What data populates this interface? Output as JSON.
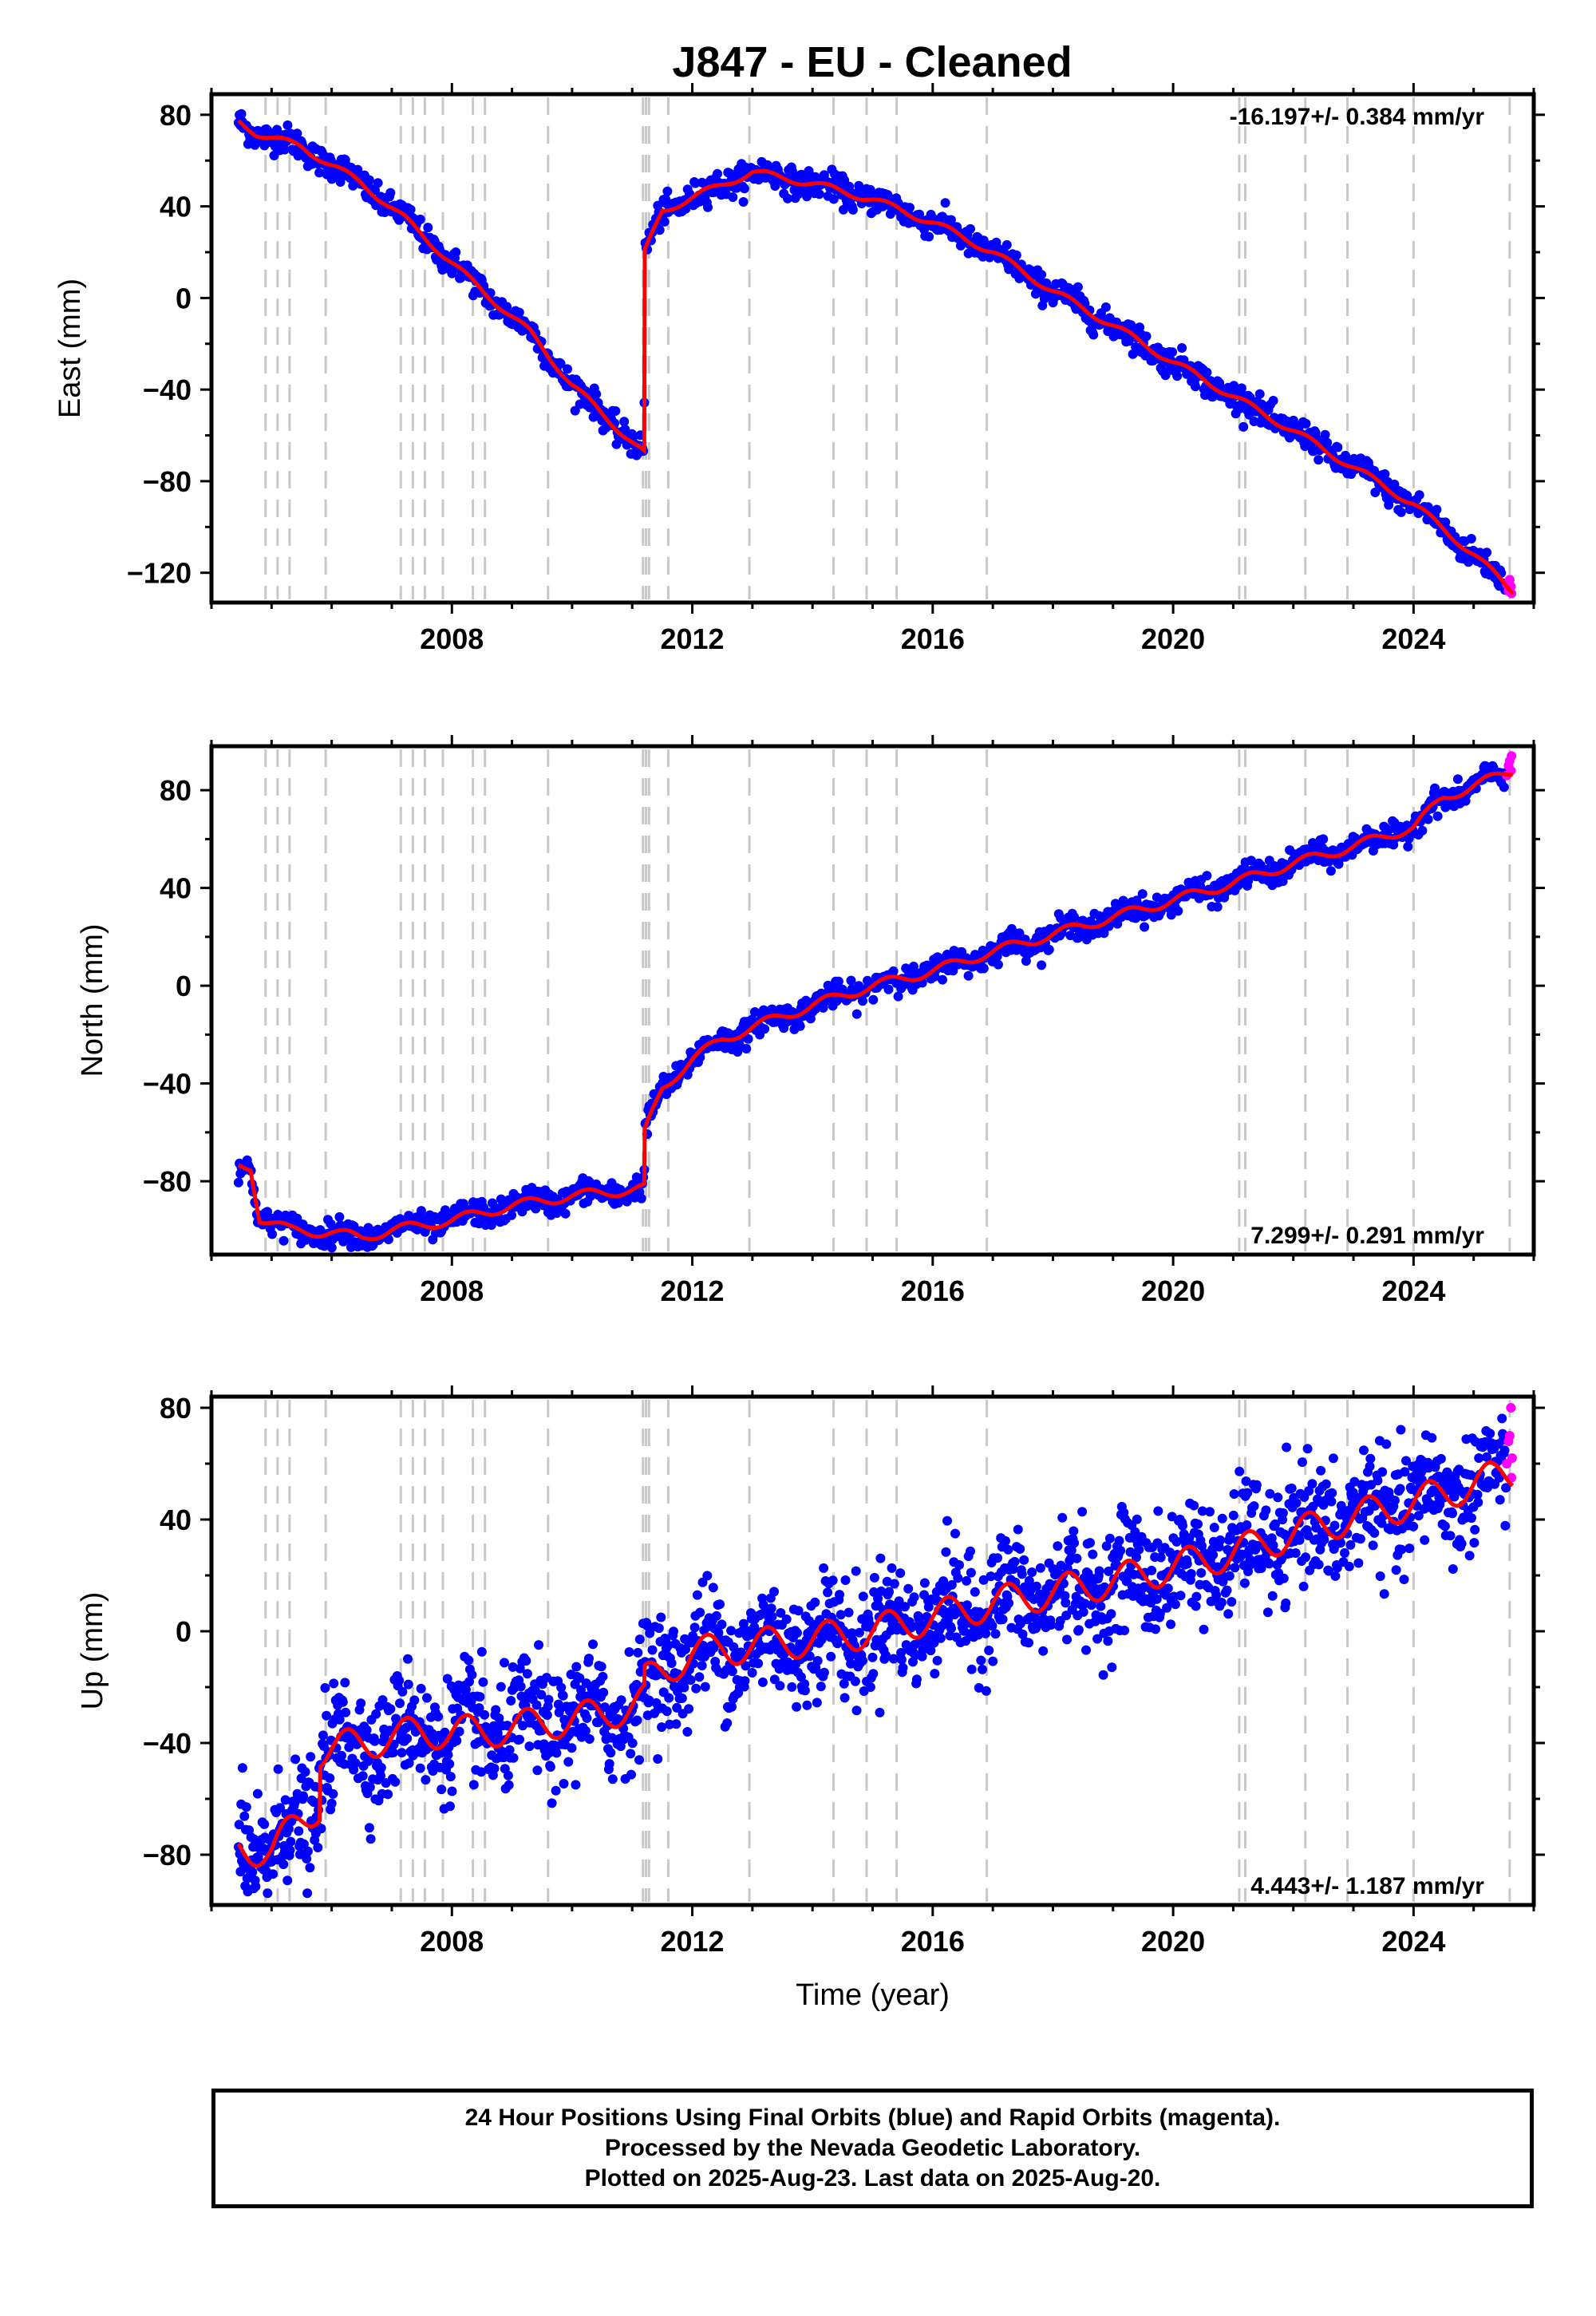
{
  "title": "J847  - EU - Cleaned",
  "colors": {
    "final_orbits": "#0000ff",
    "rapid_orbits": "#ff00ff",
    "model": "#ff0000",
    "event_lines": "#c8c8c8",
    "frame": "#000000"
  },
  "footer": {
    "line1": "24 Hour Positions Using Final Orbits (blue) and Rapid Orbits (magenta).",
    "line2": "Processed by the Nevada Geodetic Laboratory.",
    "line3": "Plotted on 2025-Aug-23. Last data on 2025-Aug-20."
  },
  "chart_data": [
    {
      "type": "scatter",
      "component": "east",
      "ylabel": "East (mm)",
      "rate_text": "-16.197+/- 0.384 mm/yr",
      "rate_position": "top-right",
      "xlim": [
        2004.0,
        2026.0
      ],
      "ylim": [
        -133,
        89
      ],
      "xticks": [
        2008,
        2012,
        2016,
        2020,
        2024
      ],
      "yticks": [
        -120,
        -80,
        -40,
        0,
        40,
        80
      ],
      "equipment_change_lines": [
        2004.9,
        2005.1,
        2005.3,
        2005.9,
        2007.15,
        2007.35,
        2007.55,
        2007.85,
        2008.35,
        2008.55,
        2009.6,
        2011.18,
        2011.23,
        2011.28,
        2011.6,
        2012.95,
        2014.35,
        2014.9,
        2015.4,
        2016.9,
        2021.1,
        2021.2,
        2022.2,
        2022.9,
        2024.0,
        2025.6
      ],
      "model_knots": [
        [
          2004.45,
          77
        ],
        [
          2004.75,
          72
        ],
        [
          2005.5,
          66
        ],
        [
          2006.5,
          50
        ],
        [
          2007.2,
          35
        ],
        [
          2008.3,
          8
        ],
        [
          2009.3,
          -15
        ],
        [
          2010.0,
          -38
        ],
        [
          2011.2,
          -68
        ],
        [
          2011.21,
          20
        ],
        [
          2011.5,
          38
        ],
        [
          2012.1,
          45
        ],
        [
          2013.0,
          55
        ],
        [
          2014.0,
          50
        ],
        [
          2015.0,
          43
        ],
        [
          2016.0,
          33
        ],
        [
          2017.0,
          20
        ],
        [
          2018.0,
          3
        ],
        [
          2019.0,
          -12
        ],
        [
          2020.0,
          -28
        ],
        [
          2021.0,
          -43
        ],
        [
          2022.0,
          -58
        ],
        [
          2023.0,
          -74
        ],
        [
          2024.0,
          -90
        ],
        [
          2025.0,
          -112
        ],
        [
          2025.65,
          -128
        ]
      ],
      "noise_amplitude": 3,
      "seasonal_amplitude": 1.5,
      "rapid_points": [
        [
          2025.55,
          -125
        ],
        [
          2025.58,
          -128
        ],
        [
          2025.6,
          -123
        ],
        [
          2025.62,
          -126
        ],
        [
          2025.63,
          -129
        ]
      ]
    },
    {
      "type": "scatter",
      "component": "north",
      "ylabel": "North (mm)",
      "rate_text": "7.299+/- 0.291 mm/yr",
      "rate_position": "bottom-right",
      "xlim": [
        2004.0,
        2026.0
      ],
      "ylim": [
        -110,
        98
      ],
      "xticks": [
        2008,
        2012,
        2016,
        2020,
        2024
      ],
      "yticks": [
        -80,
        -40,
        0,
        40,
        80
      ],
      "equipment_change_lines": [
        2004.9,
        2005.1,
        2005.3,
        2005.9,
        2007.15,
        2007.35,
        2007.55,
        2007.85,
        2008.35,
        2008.55,
        2009.6,
        2011.18,
        2011.23,
        2011.28,
        2011.6,
        2012.95,
        2014.35,
        2014.9,
        2015.4,
        2016.9,
        2021.1,
        2021.2,
        2022.2,
        2022.9,
        2024.0,
        2025.6
      ],
      "model_knots": [
        [
          2004.45,
          -74
        ],
        [
          2004.65,
          -74
        ],
        [
          2004.8,
          -95
        ],
        [
          2005.3,
          -100
        ],
        [
          2006.0,
          -101
        ],
        [
          2006.5,
          -103
        ],
        [
          2007.0,
          -100
        ],
        [
          2008.0,
          -96
        ],
        [
          2009.0,
          -90
        ],
        [
          2010.0,
          -86
        ],
        [
          2011.2,
          -83
        ],
        [
          2011.21,
          -60
        ],
        [
          2011.5,
          -42
        ],
        [
          2012.0,
          -30
        ],
        [
          2012.5,
          -22
        ],
        [
          2013.0,
          -17
        ],
        [
          2014.0,
          -8
        ],
        [
          2015.0,
          0
        ],
        [
          2016.0,
          6
        ],
        [
          2017.0,
          14
        ],
        [
          2018.0,
          21
        ],
        [
          2019.0,
          28
        ],
        [
          2020.0,
          35
        ],
        [
          2021.0,
          42
        ],
        [
          2022.0,
          50
        ],
        [
          2023.0,
          57
        ],
        [
          2024.0,
          65
        ],
        [
          2024.5,
          77
        ],
        [
          2025.65,
          88
        ]
      ],
      "noise_amplitude": 2.5,
      "seasonal_amplitude": 2,
      "rapid_points": [
        [
          2025.55,
          86
        ],
        [
          2025.58,
          90
        ],
        [
          2025.6,
          92
        ],
        [
          2025.62,
          88
        ],
        [
          2025.63,
          94
        ]
      ]
    },
    {
      "type": "scatter",
      "component": "up",
      "ylabel": "Up (mm)",
      "xlabel": "Time (year)",
      "rate_text": "4.443+/- 1.187 mm/yr",
      "rate_position": "bottom-right",
      "xlim": [
        2004.0,
        2026.0
      ],
      "ylim": [
        -98,
        84
      ],
      "xticks": [
        2008,
        2012,
        2016,
        2020,
        2024
      ],
      "yticks": [
        -80,
        -40,
        0,
        40,
        80
      ],
      "equipment_change_lines": [
        2004.9,
        2005.1,
        2005.3,
        2005.9,
        2007.15,
        2007.35,
        2007.55,
        2007.85,
        2008.35,
        2008.55,
        2009.6,
        2011.18,
        2011.23,
        2011.28,
        2011.6,
        2012.95,
        2014.35,
        2014.9,
        2015.4,
        2016.9,
        2021.1,
        2021.2,
        2022.2,
        2022.9,
        2024.0,
        2025.6
      ],
      "model_knots": [
        [
          2004.45,
          -78
        ],
        [
          2005.0,
          -78
        ],
        [
          2005.8,
          -62
        ],
        [
          2005.81,
          -43
        ],
        [
          2006.5,
          -40
        ],
        [
          2007.5,
          -36
        ],
        [
          2008.5,
          -36
        ],
        [
          2009.5,
          -33
        ],
        [
          2010.5,
          -30
        ],
        [
          2011.2,
          -25
        ],
        [
          2011.21,
          -18
        ],
        [
          2012.0,
          -8
        ],
        [
          2013.0,
          -5
        ],
        [
          2014.0,
          -3
        ],
        [
          2015.0,
          0
        ],
        [
          2016.0,
          5
        ],
        [
          2017.0,
          10
        ],
        [
          2018.0,
          14
        ],
        [
          2019.0,
          18
        ],
        [
          2020.0,
          23
        ],
        [
          2021.0,
          28
        ],
        [
          2022.0,
          35
        ],
        [
          2023.0,
          41
        ],
        [
          2024.0,
          46
        ],
        [
          2025.65,
          57
        ]
      ],
      "noise_amplitude": 10,
      "seasonal_amplitude": 6,
      "rapid_points": [
        [
          2025.55,
          60
        ],
        [
          2025.58,
          68
        ],
        [
          2025.6,
          70
        ],
        [
          2025.62,
          80
        ],
        [
          2025.63,
          55
        ],
        [
          2025.64,
          62
        ]
      ]
    }
  ]
}
